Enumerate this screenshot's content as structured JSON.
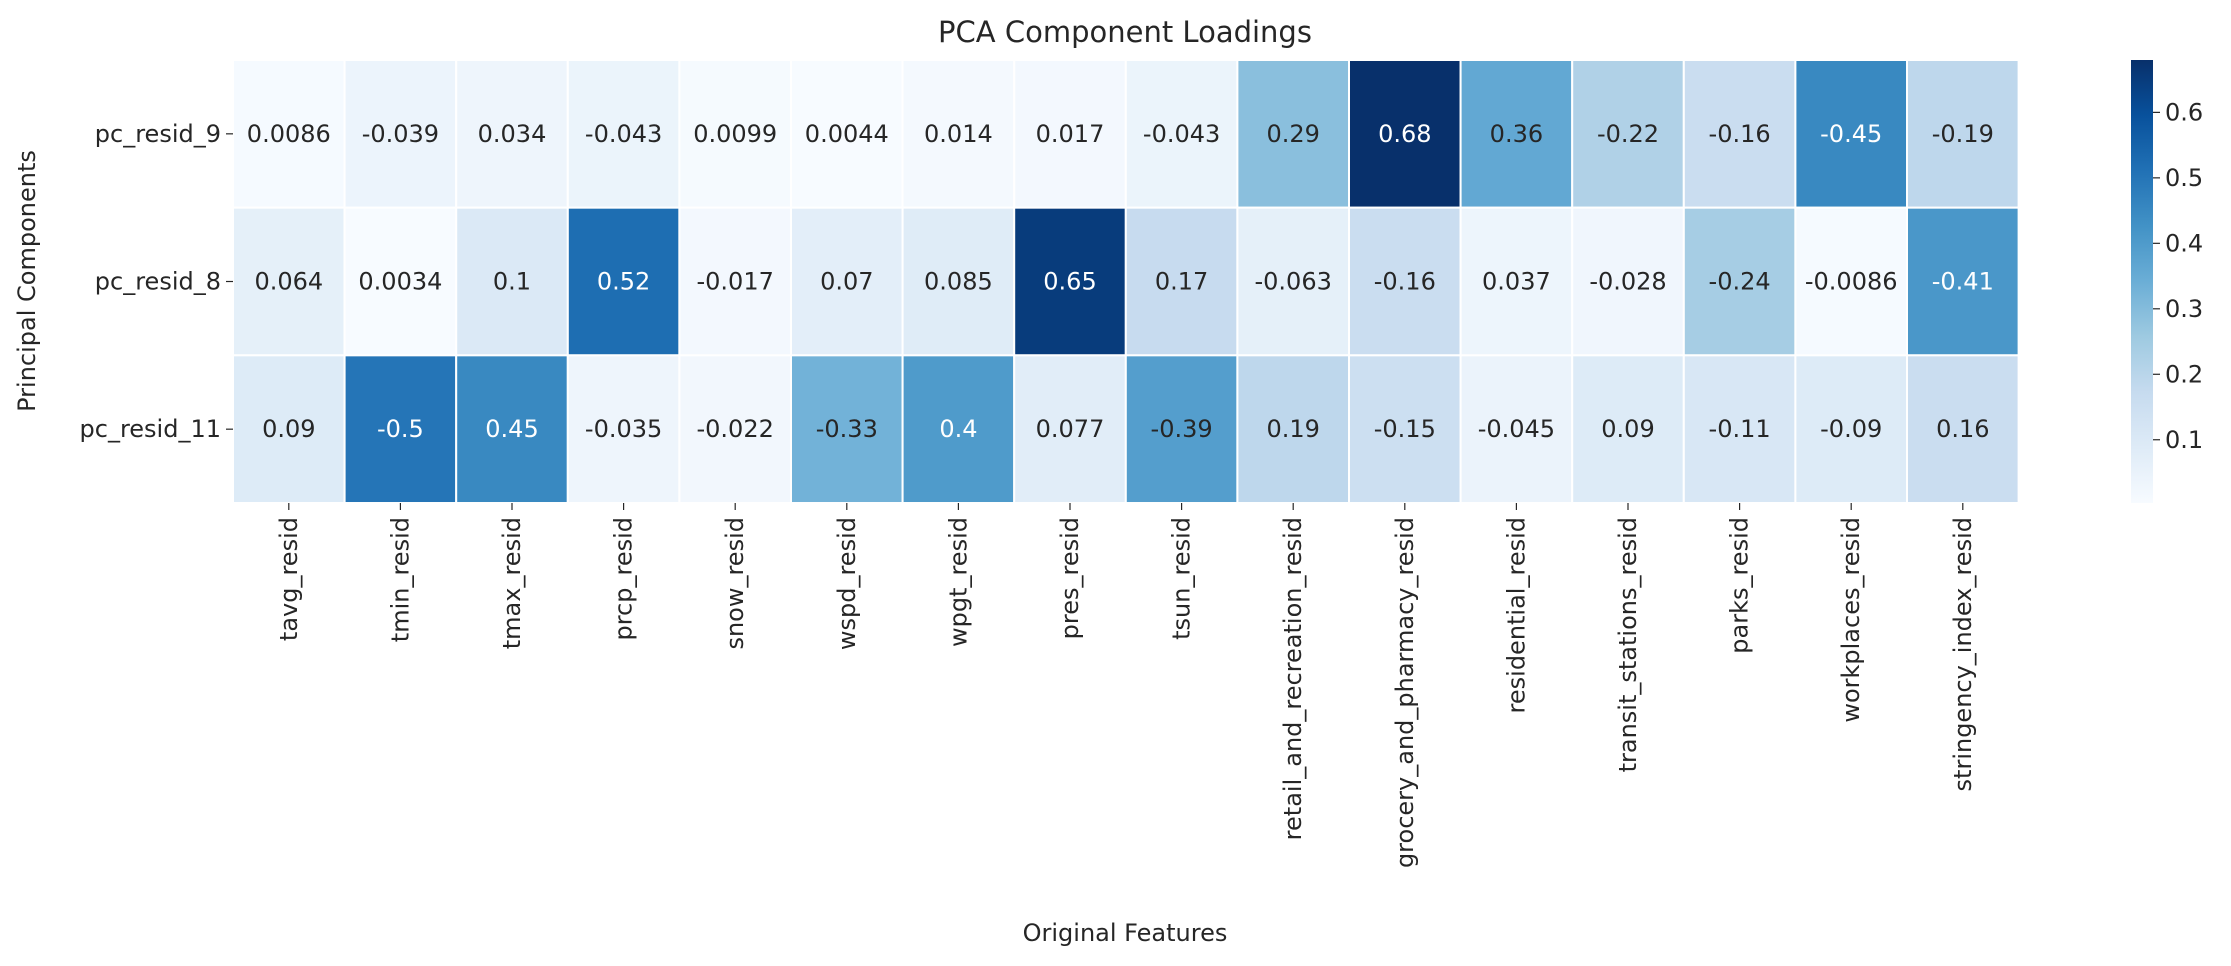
{
  "chart_data": {
    "type": "heatmap",
    "title": "PCA Component Loadings",
    "xlabel": "Original Features",
    "ylabel": "Principal Components",
    "columns": [
      "tavg_resid",
      "tmin_resid",
      "tmax_resid",
      "prcp_resid",
      "snow_resid",
      "wspd_resid",
      "wpgt_resid",
      "pres_resid",
      "tsun_resid",
      "retail_and_recreation_resid",
      "grocery_and_pharmacy_resid",
      "residential_resid",
      "transit_stations_resid",
      "parks_resid",
      "workplaces_resid",
      "stringency_index_resid"
    ],
    "rows": [
      "pc_resid_9",
      "pc_resid_8",
      "pc_resid_11"
    ],
    "values": [
      [
        0.0086,
        -0.039,
        0.034,
        -0.043,
        0.0099,
        0.0044,
        0.014,
        0.017,
        -0.043,
        0.29,
        0.68,
        0.36,
        -0.22,
        -0.16,
        -0.45,
        -0.19
      ],
      [
        0.064,
        0.0034,
        0.1,
        0.52,
        -0.017,
        0.07,
        0.085,
        0.65,
        0.17,
        -0.063,
        -0.16,
        0.037,
        -0.028,
        -0.24,
        -0.0086,
        -0.41
      ],
      [
        0.09,
        -0.5,
        0.45,
        -0.035,
        -0.022,
        -0.33,
        0.4,
        0.077,
        -0.39,
        0.19,
        -0.15,
        -0.045,
        0.09,
        -0.11,
        -0.09,
        0.16
      ]
    ],
    "labels": [
      [
        "0.0086",
        "-0.039",
        "0.034",
        "-0.043",
        "0.0099",
        "0.0044",
        "0.014",
        "0.017",
        "-0.043",
        "0.29",
        "0.68",
        "0.36",
        "-0.22",
        "-0.16",
        "-0.45",
        "-0.19"
      ],
      [
        "0.064",
        "0.0034",
        "0.1",
        "0.52",
        "-0.017",
        "0.07",
        "0.085",
        "0.65",
        "0.17",
        "-0.063",
        "-0.16",
        "0.037",
        "-0.028",
        "-0.24",
        "-0.0086",
        "-0.41"
      ],
      [
        "0.09",
        "-0.5",
        "0.45",
        "-0.035",
        "-0.022",
        "-0.33",
        "0.4",
        "0.077",
        "-0.39",
        "0.19",
        "-0.15",
        "-0.045",
        "0.09",
        "-0.11",
        "-0.09",
        "0.16"
      ]
    ],
    "color_by": "absolute value",
    "colormap": "Blues",
    "colorbar": {
      "range": [
        0.0034,
        0.68
      ],
      "ticks": [
        0.1,
        0.2,
        0.3,
        0.4,
        0.5,
        0.6
      ],
      "tick_labels": [
        "0.1",
        "0.2",
        "0.3",
        "0.4",
        "0.5",
        "0.6"
      ]
    },
    "grid": false
  }
}
